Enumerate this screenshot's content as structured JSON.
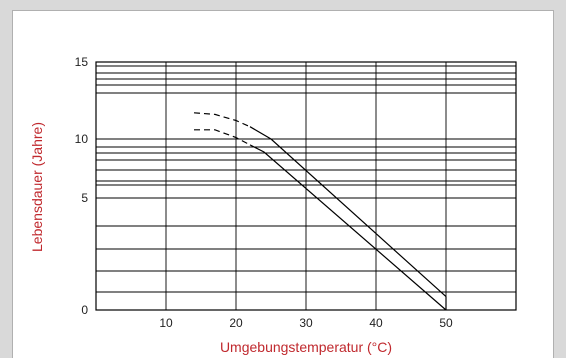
{
  "chart_data": {
    "type": "line",
    "xlabel": "Umgebungstemperatur (°C)",
    "ylabel": "Lebensdauer (Jahre)",
    "x_ticks": [
      "10",
      "20",
      "30",
      "40",
      "50"
    ],
    "y_ticks": [
      "0",
      "5",
      "10",
      "15"
    ],
    "xlim": [
      0,
      60
    ],
    "y_tick_values": [
      0,
      5,
      10,
      15
    ],
    "grid": true,
    "series": [
      {
        "values": [
          {
            "x": 14,
            "y": 11.7,
            "style": "dashed"
          },
          {
            "x": 17,
            "y": 11.6,
            "style": "dashed"
          },
          {
            "x": 20,
            "y": 11.2,
            "style": "dashed"
          },
          {
            "x": 22,
            "y": 10.8,
            "style": "dashed"
          },
          {
            "x": 25,
            "y": 10.0,
            "style": "solid"
          },
          {
            "x": 50,
            "y": 0.6,
            "style": "solid"
          }
        ]
      },
      {
        "values": [
          {
            "x": 14,
            "y": 10.6,
            "style": "dashed"
          },
          {
            "x": 17,
            "y": 10.6,
            "style": "dashed"
          },
          {
            "x": 20,
            "y": 10.1,
            "style": "dashed"
          },
          {
            "x": 22,
            "y": 9.5,
            "style": "dashed"
          },
          {
            "x": 24,
            "y": 8.9,
            "style": "solid"
          },
          {
            "x": 50,
            "y": 0.0,
            "style": "solid"
          }
        ]
      }
    ]
  }
}
